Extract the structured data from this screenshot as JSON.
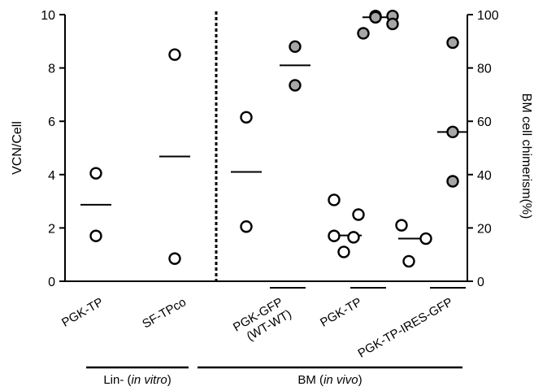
{
  "chart_data": {
    "type": "scatter",
    "title": "",
    "ylabel": "VCN/Cell",
    "y2label": "BM cell chimerism(%)",
    "ylim": [
      0,
      10
    ],
    "y2lim": [
      0,
      100
    ],
    "yticks": [
      0,
      2,
      4,
      6,
      8,
      10
    ],
    "y2ticks": [
      0,
      20,
      40,
      60,
      80,
      100
    ],
    "grid": false,
    "categories": [
      {
        "label": "PGK-TP",
        "sublabel": ""
      },
      {
        "label": "SF-TPco",
        "sublabel": ""
      },
      {
        "label": "PGK-GFP",
        "sublabel": "(WT-WT)"
      },
      {
        "label": "PGK-TP",
        "sublabel": ""
      },
      {
        "label": "PGK-TP-IRES-GFP",
        "sublabel": ""
      }
    ],
    "series": [
      {
        "marker": "open-circle",
        "axis": "left",
        "points": [
          {
            "cat": 0,
            "offset": 0,
            "y": 4.05
          },
          {
            "cat": 0,
            "offset": 0,
            "y": 1.7
          },
          {
            "cat": 1,
            "offset": 0,
            "y": 8.5
          },
          {
            "cat": 1,
            "offset": 0,
            "y": 0.85
          },
          {
            "cat": 2,
            "offset": -0.5,
            "y": 6.15
          },
          {
            "cat": 2,
            "offset": -0.5,
            "y": 2.05
          },
          {
            "cat": 3,
            "offset": -0.35,
            "y": 3.05
          },
          {
            "cat": 3,
            "offset": 0.15,
            "y": 2.5
          },
          {
            "cat": 3,
            "offset": -0.35,
            "y": 1.7
          },
          {
            "cat": 3,
            "offset": 0.05,
            "y": 1.65
          },
          {
            "cat": 3,
            "offset": -0.15,
            "y": 1.1
          },
          {
            "cat": 4,
            "offset": -0.6,
            "y": 2.1
          },
          {
            "cat": 4,
            "offset": -0.1,
            "y": 1.6
          },
          {
            "cat": 4,
            "offset": -0.45,
            "y": 0.75
          }
        ],
        "means": [
          {
            "cat": 0,
            "offset": 0,
            "y": 2.87
          },
          {
            "cat": 1,
            "offset": 0,
            "y": 4.68
          },
          {
            "cat": 2,
            "offset": -0.5,
            "y": 4.1
          },
          {
            "cat": 3,
            "offset": -0.1,
            "y": 1.72
          },
          {
            "cat": 4,
            "offset": -0.35,
            "y": 1.6
          }
        ]
      },
      {
        "marker": "filled-circle",
        "color": "#a6a6a6",
        "axis": "right",
        "points": [
          {
            "cat": 2,
            "offset": 0.5,
            "y": 88
          },
          {
            "cat": 2,
            "offset": 0.5,
            "y": 73.5
          },
          {
            "cat": 3,
            "offset": 0.5,
            "y": 99.5
          },
          {
            "cat": 3,
            "offset": 0.85,
            "y": 99.5
          },
          {
            "cat": 3,
            "offset": 0.5,
            "y": 99
          },
          {
            "cat": 3,
            "offset": 0.85,
            "y": 96.5
          },
          {
            "cat": 3,
            "offset": 0.25,
            "y": 93
          },
          {
            "cat": 4,
            "offset": 0.45,
            "y": 89.5
          },
          {
            "cat": 4,
            "offset": 0.45,
            "y": 56
          },
          {
            "cat": 4,
            "offset": 0.45,
            "y": 37.5
          }
        ],
        "means": [
          {
            "cat": 2,
            "offset": 0.5,
            "y": 81
          },
          {
            "cat": 3,
            "offset": 0.55,
            "y": 99
          },
          {
            "cat": 4,
            "offset": 0.45,
            "y": 56
          }
        ]
      }
    ],
    "groups": [
      {
        "label": "Lin- (",
        "italic": "in vitro",
        "suffix": ")",
        "from": 0,
        "to": 1
      },
      {
        "label": "BM (",
        "italic": "in vivo",
        "suffix": ")",
        "from": 2,
        "to": 4
      }
    ],
    "divider_after_category": 1
  }
}
